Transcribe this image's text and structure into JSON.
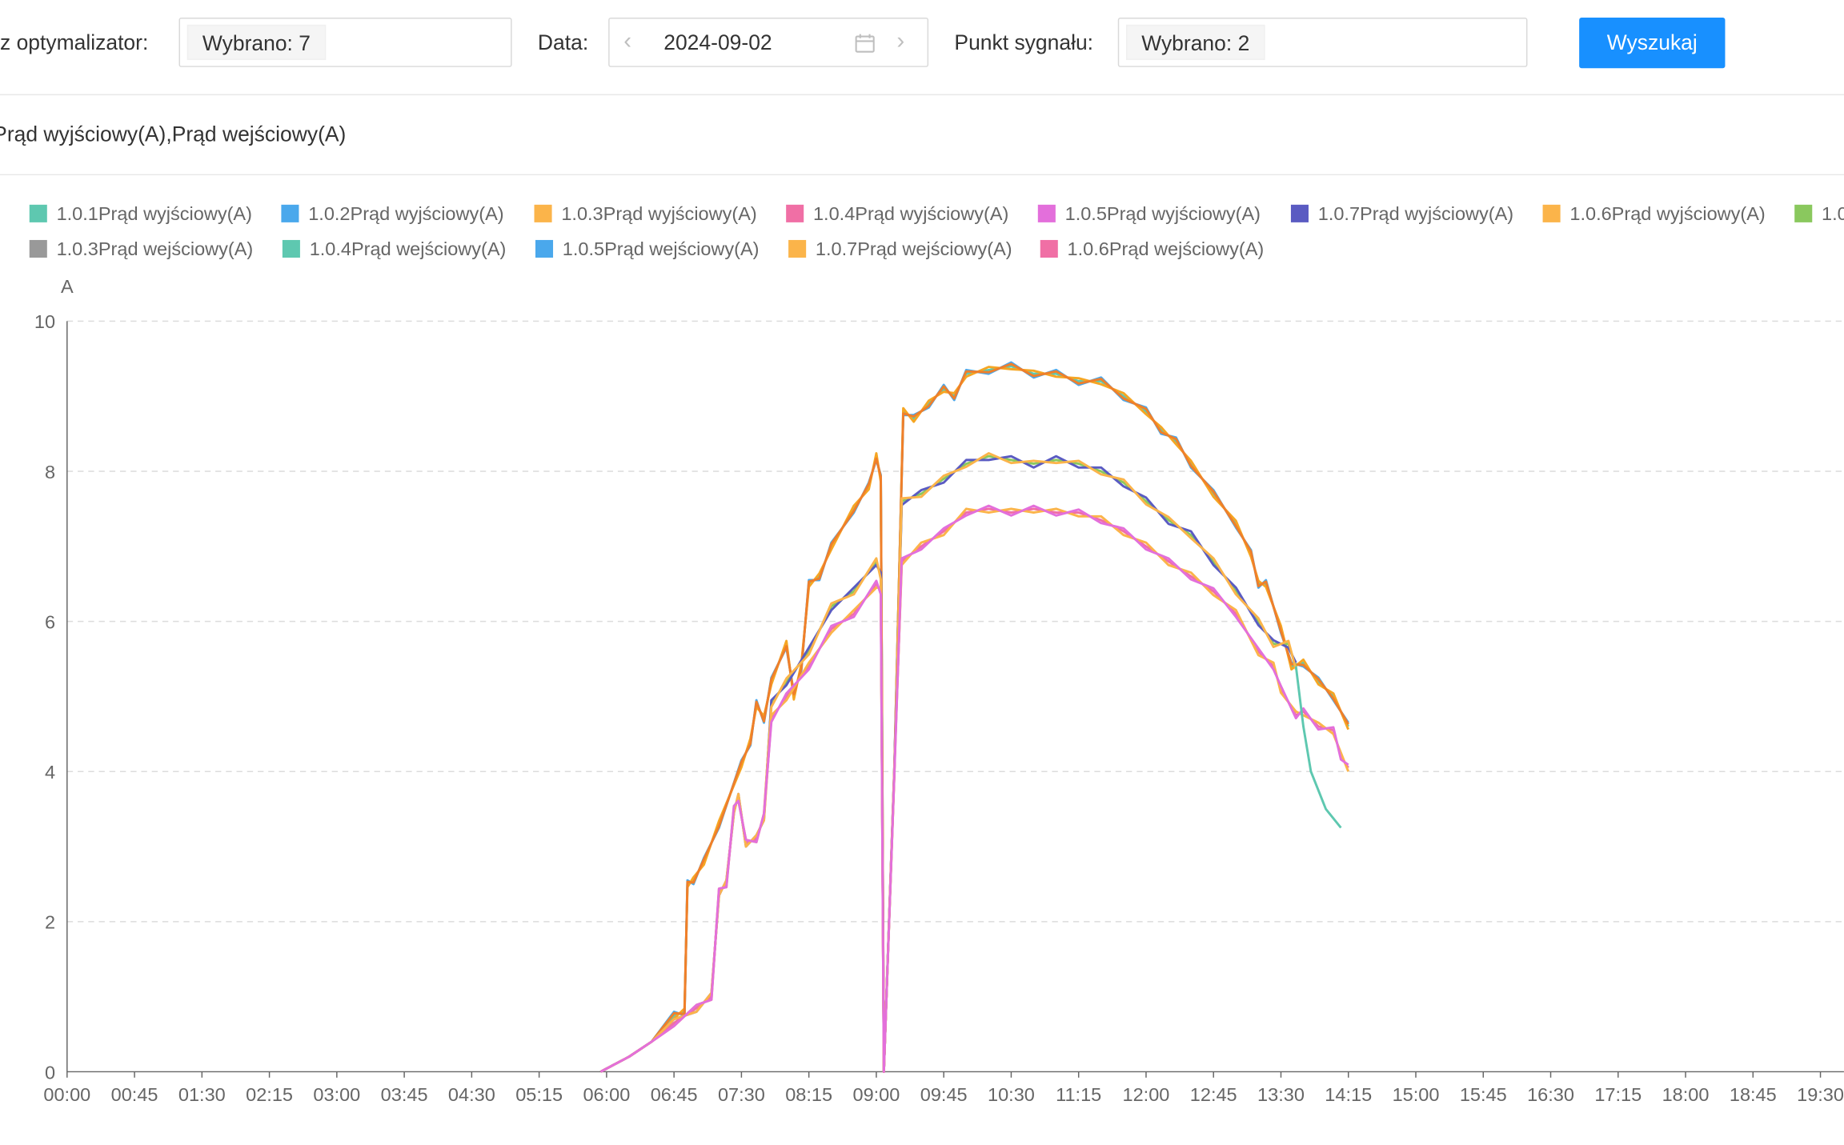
{
  "filters": {
    "optimizer_label": "rz optymalizator",
    "optimizer_value": "Wybrano: 7",
    "date_label": "Data",
    "date_value": "2024-09-02",
    "signal_label": "Punkt sygnału",
    "signal_value": "Wybrano: 2",
    "search_label": "Wyszukaj"
  },
  "colors": {
    "accent": "#1890ff"
  },
  "chart_data": {
    "type": "line",
    "title": "Prąd wyjściowy(A),Prąd wejściowy(A)",
    "ylabel": "A",
    "ylim": [
      0,
      10
    ],
    "yticks": [
      0,
      2,
      4,
      6,
      8,
      10
    ],
    "xlim": [
      "00:00",
      "19:30"
    ],
    "xticks": [
      "00:00",
      "00:45",
      "01:30",
      "02:15",
      "03:00",
      "03:45",
      "04:30",
      "05:15",
      "06:00",
      "06:45",
      "07:30",
      "08:15",
      "09:00",
      "09:45",
      "10:30",
      "11:15",
      "12:00",
      "12:45",
      "13:30",
      "14:15",
      "15:00",
      "15:45",
      "16:30",
      "17:15",
      "18:00",
      "18:45",
      "19:30"
    ],
    "grid": true,
    "legend_position": "top",
    "legend": [
      {
        "name": "1.0.1Prąd wyjściowy(A)",
        "color": "#5ec8b0"
      },
      {
        "name": "1.0.2Prąd wyjściowy(A)",
        "color": "#4aa8ec"
      },
      {
        "name": "1.0.3Prąd wyjściowy(A)",
        "color": "#fbb44a"
      },
      {
        "name": "1.0.4Prąd wyjściowy(A)",
        "color": "#f06fa5"
      },
      {
        "name": "1.0.5Prąd wyjściowy(A)",
        "color": "#e36fdb"
      },
      {
        "name": "1.0.7Prąd wyjściowy(A)",
        "color": "#5a5bc2"
      },
      {
        "name": "1.0.6Prąd wyjściowy(A)",
        "color": "#fbb44a"
      },
      {
        "name": "1.0",
        "color": "#8ac85e"
      },
      {
        "name": "1.0.3Prąd wejściowy(A)",
        "color": "#999999"
      },
      {
        "name": "1.0.4Prąd wejściowy(A)",
        "color": "#5ec8b0"
      },
      {
        "name": "1.0.5Prąd wejściowy(A)",
        "color": "#4aa8ec"
      },
      {
        "name": "1.0.7Prąd wejściowy(A)",
        "color": "#fbb44a"
      },
      {
        "name": "1.0.6Prąd wejściowy(A)",
        "color": "#f06fa5"
      }
    ],
    "groups": [
      {
        "colors": [
          "#5ec8b0",
          "#4aa8ec",
          "#f5a623",
          "#f07f2a"
        ],
        "points": [
          [
            "05:56",
            0
          ],
          [
            "06:15",
            0.2
          ],
          [
            "06:30",
            0.4
          ],
          [
            "06:45",
            0.75
          ],
          [
            "06:52",
            0.8
          ],
          [
            "06:54",
            2.5
          ],
          [
            "06:58",
            2.55
          ],
          [
            "07:05",
            2.8
          ],
          [
            "07:15",
            3.3
          ],
          [
            "07:30",
            4.1
          ],
          [
            "07:36",
            4.4
          ],
          [
            "07:40",
            4.9
          ],
          [
            "07:45",
            4.7
          ],
          [
            "07:50",
            5.2
          ],
          [
            "08:00",
            5.7
          ],
          [
            "08:05",
            5.0
          ],
          [
            "08:10",
            5.4
          ],
          [
            "08:15",
            6.5
          ],
          [
            "08:22",
            6.6
          ],
          [
            "08:30",
            7.0
          ],
          [
            "08:45",
            7.5
          ],
          [
            "08:55",
            7.8
          ],
          [
            "09:00",
            8.2
          ],
          [
            "09:03",
            7.9
          ],
          [
            "09:05",
            0
          ],
          [
            "09:12",
            4
          ],
          [
            "09:18",
            8.8
          ],
          [
            "09:25",
            8.7
          ],
          [
            "09:35",
            8.9
          ],
          [
            "09:45",
            9.1
          ],
          [
            "09:52",
            9.0
          ],
          [
            "10:00",
            9.3
          ],
          [
            "10:15",
            9.35
          ],
          [
            "10:30",
            9.4
          ],
          [
            "10:45",
            9.3
          ],
          [
            "11:00",
            9.3
          ],
          [
            "11:15",
            9.2
          ],
          [
            "11:30",
            9.2
          ],
          [
            "11:45",
            9.0
          ],
          [
            "12:00",
            8.8
          ],
          [
            "12:10",
            8.55
          ],
          [
            "12:20",
            8.4
          ],
          [
            "12:30",
            8.1
          ],
          [
            "12:45",
            7.7
          ],
          [
            "13:00",
            7.3
          ],
          [
            "13:10",
            6.9
          ],
          [
            "13:15",
            6.5
          ],
          [
            "13:20",
            6.5
          ],
          [
            "13:30",
            5.9
          ],
          [
            "13:37",
            5.4
          ],
          [
            "13:45",
            5.45
          ],
          [
            "13:55",
            5.2
          ],
          [
            "14:05",
            5.0
          ],
          [
            "14:15",
            4.6
          ]
        ]
      },
      {
        "colors": [
          "#8ac85e",
          "#5a5bc2",
          "#fbb44a"
        ],
        "points": [
          [
            "05:56",
            0
          ],
          [
            "06:15",
            0.2
          ],
          [
            "06:30",
            0.4
          ],
          [
            "06:45",
            0.65
          ],
          [
            "07:00",
            0.85
          ],
          [
            "07:10",
            1.0
          ],
          [
            "07:15",
            2.4
          ],
          [
            "07:20",
            2.5
          ],
          [
            "07:25",
            3.5
          ],
          [
            "07:28",
            3.65
          ],
          [
            "07:33",
            3.05
          ],
          [
            "07:40",
            3.1
          ],
          [
            "07:45",
            3.4
          ],
          [
            "07:50",
            4.9
          ],
          [
            "08:00",
            5.2
          ],
          [
            "08:15",
            5.6
          ],
          [
            "08:30",
            6.2
          ],
          [
            "08:45",
            6.4
          ],
          [
            "09:00",
            6.8
          ],
          [
            "09:03",
            6.6
          ],
          [
            "09:05",
            0
          ],
          [
            "09:12",
            4
          ],
          [
            "09:17",
            7.6
          ],
          [
            "09:30",
            7.7
          ],
          [
            "09:45",
            7.9
          ],
          [
            "10:00",
            8.1
          ],
          [
            "10:15",
            8.2
          ],
          [
            "10:30",
            8.15
          ],
          [
            "10:45",
            8.1
          ],
          [
            "11:00",
            8.15
          ],
          [
            "11:15",
            8.1
          ],
          [
            "11:30",
            8.0
          ],
          [
            "11:45",
            7.85
          ],
          [
            "12:00",
            7.6
          ],
          [
            "12:15",
            7.35
          ],
          [
            "12:30",
            7.15
          ],
          [
            "12:45",
            6.8
          ],
          [
            "13:00",
            6.4
          ],
          [
            "13:15",
            6.0
          ],
          [
            "13:25",
            5.7
          ],
          [
            "13:35",
            5.7
          ],
          [
            "13:40",
            5.4
          ]
        ]
      },
      {
        "colors": [
          "#f06fa5",
          "#fbb44a",
          "#e36fdb"
        ],
        "points": [
          [
            "05:56",
            0
          ],
          [
            "06:15",
            0.2
          ],
          [
            "06:30",
            0.4
          ],
          [
            "06:45",
            0.65
          ],
          [
            "07:00",
            0.85
          ],
          [
            "07:10",
            1.0
          ],
          [
            "07:15",
            2.4
          ],
          [
            "07:20",
            2.5
          ],
          [
            "07:25",
            3.5
          ],
          [
            "07:28",
            3.65
          ],
          [
            "07:33",
            3.05
          ],
          [
            "07:40",
            3.1
          ],
          [
            "07:45",
            3.4
          ],
          [
            "07:50",
            4.7
          ],
          [
            "08:00",
            5.0
          ],
          [
            "08:15",
            5.4
          ],
          [
            "08:30",
            5.9
          ],
          [
            "08:45",
            6.1
          ],
          [
            "09:00",
            6.5
          ],
          [
            "09:03",
            6.4
          ],
          [
            "09:05",
            0
          ],
          [
            "09:12",
            4
          ],
          [
            "09:17",
            6.8
          ],
          [
            "09:30",
            7.0
          ],
          [
            "09:45",
            7.2
          ],
          [
            "10:00",
            7.45
          ],
          [
            "10:15",
            7.5
          ],
          [
            "10:30",
            7.45
          ],
          [
            "10:45",
            7.5
          ],
          [
            "11:00",
            7.45
          ],
          [
            "11:15",
            7.45
          ],
          [
            "11:30",
            7.35
          ],
          [
            "11:45",
            7.2
          ],
          [
            "12:00",
            7.0
          ],
          [
            "12:15",
            6.8
          ],
          [
            "12:30",
            6.6
          ],
          [
            "12:45",
            6.4
          ],
          [
            "13:00",
            6.1
          ],
          [
            "13:15",
            5.6
          ],
          [
            "13:25",
            5.4
          ],
          [
            "13:30",
            5.1
          ],
          [
            "13:40",
            4.75
          ],
          [
            "13:45",
            4.8
          ],
          [
            "13:55",
            4.6
          ],
          [
            "14:05",
            4.55
          ],
          [
            "14:10",
            4.2
          ],
          [
            "14:15",
            4.05
          ]
        ]
      },
      {
        "colors": [
          "#5ec8b0"
        ],
        "points": [
          [
            "13:40",
            5.4
          ],
          [
            "13:45",
            4.6
          ],
          [
            "13:50",
            4.0
          ],
          [
            "14:00",
            3.5
          ],
          [
            "14:10",
            3.25
          ]
        ]
      }
    ]
  }
}
